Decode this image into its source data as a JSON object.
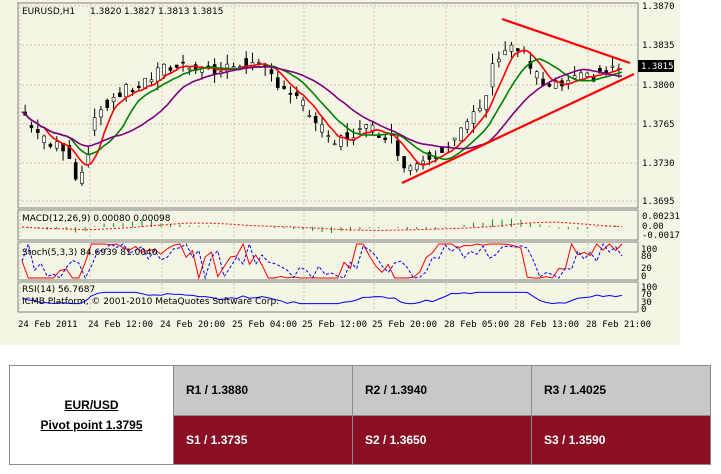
{
  "chart": {
    "header": {
      "symbol": "EURUSD,H1",
      "open": "1.3820",
      "high": "1.3827",
      "low": "1.3813",
      "close": "1.3815"
    },
    "price_ticks": [
      "1.3870",
      "1.3835",
      "1.3800",
      "1.3765",
      "1.3730",
      "1.3695"
    ],
    "current_price": "1.3815",
    "macd": {
      "label": "MACD(12,26,9) 0.00080 0.00098",
      "ticks": [
        "0.00231",
        "0.00",
        "-0.0017"
      ]
    },
    "stoch": {
      "label": "Stoch(5,3,3) 84.6939 81.0040",
      "ticks": [
        "100",
        "80",
        "20",
        "0"
      ]
    },
    "rsi": {
      "label": "RSI(14) 56.7687",
      "ticks": [
        "100",
        "70",
        "30",
        "0"
      ]
    },
    "copyright": "ICMB Platform, © 2001-2010 MetaQuotes Software Corp.",
    "time_ticks": [
      "24 Feb 2011",
      "24 Feb 12:00",
      "24 Feb 20:00",
      "25 Feb 04:00",
      "25 Feb 12:00",
      "25 Feb 20:00",
      "28 Feb 05:00",
      "28 Feb 13:00",
      "28 Feb 21:00"
    ],
    "colors": {
      "background": "#f5f5e6",
      "grid": "#c8c8b0",
      "candle_up": "#ffffff",
      "candle_down": "#000000",
      "ma_fast": "#ff0000",
      "ma_mid": "#008000",
      "ma_slow": "#800080",
      "trendline": "#ff0000",
      "macd_hist": "#00a000",
      "macd_signal": "#ff0000",
      "stoch_main": "#ff0000",
      "stoch_signal": "#0000ff",
      "rsi": "#0000ff"
    }
  },
  "pivot": {
    "pair": "EUR/USD",
    "pivot_label": "Pivot point 1.3795",
    "r1": "R1 / 1.3880",
    "r2": "R2 / 1.3940",
    "r3": "R3 / 1.4025",
    "s1": "S1 / 1.3735",
    "s2": "S2 / 1.3650",
    "s3": "S3 / 1.3590",
    "colors": {
      "resistance_bg": "#c8c8c8",
      "support_bg": "#8a0f23",
      "support_text": "#ffffff"
    }
  }
}
